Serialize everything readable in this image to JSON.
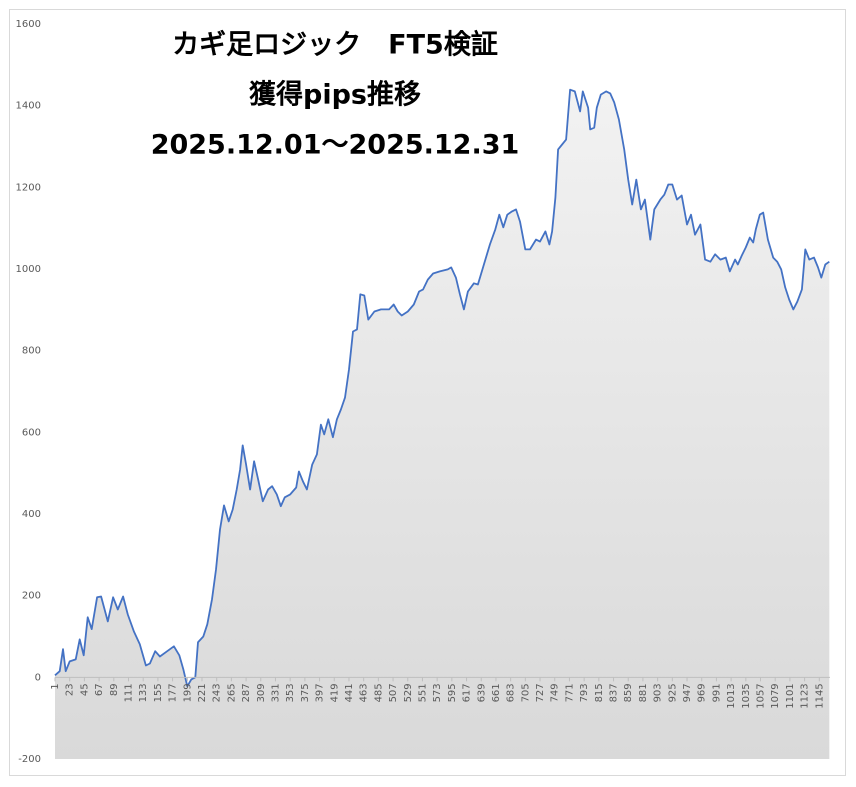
{
  "chart_data": {
    "type": "area",
    "title": [
      "カギ足ロジック　FT5検証",
      "獲得pips推移",
      "2025.12.01～2025.12.31"
    ],
    "x": [
      1,
      8,
      13,
      17,
      23,
      32,
      38,
      44,
      50,
      56,
      64,
      70,
      80,
      88,
      95,
      103,
      110,
      119,
      128,
      137,
      143,
      151,
      158,
      169,
      179,
      187,
      193,
      199,
      205,
      211,
      215,
      223,
      229,
      236,
      242,
      248,
      254,
      261,
      267,
      273,
      278,
      282,
      287,
      293,
      299,
      305,
      312,
      320,
      326,
      333,
      339,
      345,
      353,
      362,
      366,
      372,
      378,
      386,
      393,
      399,
      404,
      410,
      417,
      423,
      429,
      435,
      441,
      447,
      453,
      458,
      464,
      470,
      479,
      489,
      501,
      508,
      514,
      520,
      529,
      538,
      546,
      552,
      559,
      567,
      577,
      589,
      594,
      601,
      607,
      613,
      619,
      628,
      634,
      643,
      652,
      660,
      666,
      672,
      678,
      685,
      691,
      697,
      705,
      712,
      721,
      727,
      735,
      741,
      745,
      750,
      754,
      760,
      766,
      772,
      779,
      787,
      791,
      799,
      802,
      808,
      812,
      818,
      826,
      832,
      838,
      845,
      853,
      859,
      865,
      871,
      878,
      884,
      892,
      898,
      907,
      913,
      919,
      925,
      932,
      939,
      947,
      953,
      959,
      967,
      974,
      982,
      989,
      997,
      1005,
      1011,
      1019,
      1023,
      1029,
      1035,
      1041,
      1046,
      1050,
      1056,
      1061,
      1068,
      1076,
      1082,
      1088,
      1094,
      1100,
      1106,
      1112,
      1119,
      1124,
      1130,
      1137,
      1143,
      1148,
      1154,
      1160
    ],
    "series": [
      {
        "color": "#4472c4",
        "values": [
          5,
          15,
          69,
          15,
          39,
          44,
          93,
          54,
          147,
          118,
          196,
          198,
          137,
          196,
          166,
          198,
          154,
          113,
          81,
          29,
          34,
          64,
          51,
          64,
          76,
          54,
          20,
          -22,
          -5,
          0,
          86,
          100,
          130,
          191,
          264,
          362,
          421,
          382,
          411,
          460,
          509,
          568,
          521,
          460,
          529,
          485,
          431,
          460,
          468,
          448,
          419,
          441,
          448,
          465,
          504,
          480,
          460,
          521,
          546,
          619,
          595,
          632,
          588,
          632,
          656,
          685,
          754,
          847,
          852,
          938,
          935,
          876,
          896,
          901,
          901,
          913,
          896,
          886,
          896,
          913,
          945,
          950,
          974,
          989,
          994,
          999,
          1004,
          979,
          938,
          901,
          945,
          965,
          962,
          1011,
          1060,
          1097,
          1133,
          1102,
          1133,
          1141,
          1146,
          1116,
          1048,
          1048,
          1072,
          1067,
          1092,
          1060,
          1092,
          1175,
          1293,
          1305,
          1317,
          1439,
          1435,
          1386,
          1435,
          1395,
          1342,
          1346,
          1395,
          1427,
          1435,
          1430,
          1408,
          1366,
          1293,
          1219,
          1158,
          1219,
          1146,
          1170,
          1072,
          1146,
          1170,
          1182,
          1207,
          1207,
          1170,
          1180,
          1109,
          1133,
          1084,
          1109,
          1023,
          1018,
          1036,
          1023,
          1028,
          994,
          1023,
          1011,
          1033,
          1053,
          1077,
          1065,
          1097,
          1133,
          1138,
          1072,
          1028,
          1018,
          999,
          955,
          925,
          901,
          920,
          950,
          1048,
          1023,
          1028,
          1004,
          979,
          1011,
          1018
        ]
      }
    ],
    "xlim": [
      1,
      1161
    ],
    "xticks": [
      1,
      23,
      45,
      67,
      89,
      111,
      133,
      155,
      177,
      199,
      221,
      243,
      265,
      287,
      309,
      331,
      353,
      375,
      397,
      419,
      441,
      463,
      485,
      507,
      529,
      551,
      573,
      595,
      617,
      639,
      661,
      683,
      705,
      727,
      749,
      771,
      793,
      815,
      837,
      859,
      881,
      903,
      925,
      947,
      969,
      991,
      1013,
      1035,
      1057,
      1079,
      1101,
      1123,
      1145
    ],
    "ylim": [
      -200,
      1600
    ],
    "yticks": [
      -200,
      0,
      200,
      400,
      600,
      800,
      1000,
      1200,
      1400,
      1600
    ]
  }
}
